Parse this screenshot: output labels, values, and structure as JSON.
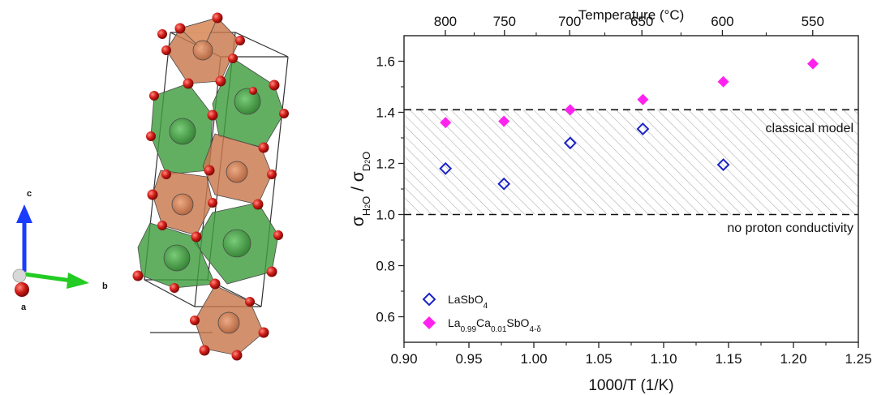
{
  "crystal_structure": {
    "axes": {
      "a_label": "a",
      "b_label": "b",
      "c_label": "c"
    },
    "colors": {
      "octahedron_green": "#3f9e3f",
      "octahedron_orange": "#c9784d",
      "oxygen": "#d11d17",
      "a_axis": "#b30000",
      "b_axis": "#22cc22",
      "c_axis": "#1a3cff"
    }
  },
  "chart_data": {
    "type": "scatter",
    "xlabel": "1000/T (1/K)",
    "ylabel_main": "σ",
    "ylabel_sub1": "H",
    "ylabel_sub1b": "2",
    "ylabel_sub1c": "O",
    "ylabel_slash": " / σ",
    "ylabel_sub2": "D",
    "ylabel_sub2b": "2",
    "ylabel_sub2c": "O",
    "top_axis_label": "Temperature (°C)",
    "xlim": [
      0.9,
      1.25
    ],
    "ylim": [
      0.5,
      1.7
    ],
    "x_ticks": [
      0.9,
      0.95,
      1.0,
      1.05,
      1.1,
      1.15,
      1.2,
      1.25
    ],
    "x_tick_labels": [
      "0.90",
      "0.95",
      "1.00",
      "1.05",
      "1.10",
      "1.15",
      "1.20",
      "1.25"
    ],
    "y_ticks": [
      0.6,
      0.8,
      1.0,
      1.2,
      1.4,
      1.6
    ],
    "y_tick_labels": [
      "0.6",
      "0.8",
      "1.0",
      "1.2",
      "1.4",
      "1.6"
    ],
    "top_ticks_celsius": [
      800,
      750,
      700,
      650,
      600,
      550
    ],
    "top_tick_labels": [
      "800",
      "750",
      "700",
      "650",
      "600",
      "550"
    ],
    "reference_lines": [
      {
        "y": 1.41,
        "label": "classical model"
      },
      {
        "y": 1.0,
        "label": "no proton conductivity"
      }
    ],
    "shaded_region": {
      "y_min": 1.0,
      "y_max": 1.41
    },
    "series": [
      {
        "name": "LaSbO",
        "name_sub": "4",
        "marker": "open-diamond",
        "color": "#1a23c7",
        "x": [
          0.932,
          0.977,
          1.028,
          1.084,
          1.146
        ],
        "y": [
          1.18,
          1.12,
          1.28,
          1.335,
          1.195
        ]
      },
      {
        "name_parts": [
          "La",
          "0.99",
          "Ca",
          "0.01",
          "SbO",
          "4-δ"
        ],
        "marker": "filled-diamond",
        "color": "#ff22ee",
        "x": [
          0.932,
          0.977,
          1.028,
          1.084,
          1.146,
          1.215
        ],
        "y": [
          1.36,
          1.365,
          1.41,
          1.45,
          1.52,
          1.59
        ]
      }
    ],
    "legend_position": "bottom-left"
  }
}
